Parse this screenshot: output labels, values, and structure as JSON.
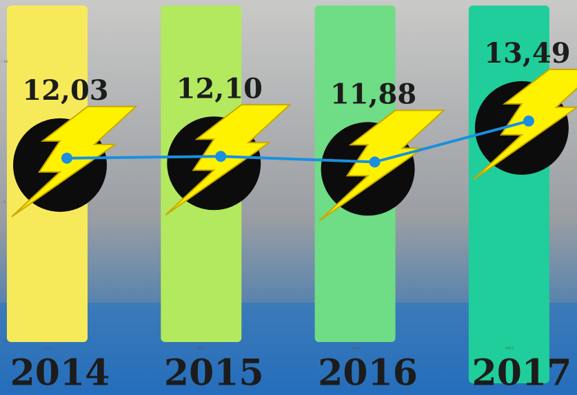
{
  "chart_data": {
    "type": "line",
    "categories": [
      "2014",
      "2015",
      "2016",
      "2017"
    ],
    "series": [
      {
        "color": "#1a8fe0",
        "axis": "y2",
        "values": [
          12.03,
          12.1,
          11.88,
          13.49
        ],
        "value_labels": [
          "12,03",
          "12,10",
          "11,88",
          "13,49"
        ]
      }
    ],
    "column_colors": [
      "#f7ea5a",
      "#b3e95e",
      "#6fdc86",
      "#1fce9a"
    ],
    "ylim": [
      0,
      12.2
    ],
    "yticks": [
      0,
      5,
      10
    ],
    "y2lim": [
      4.8,
      18.25
    ]
  }
}
